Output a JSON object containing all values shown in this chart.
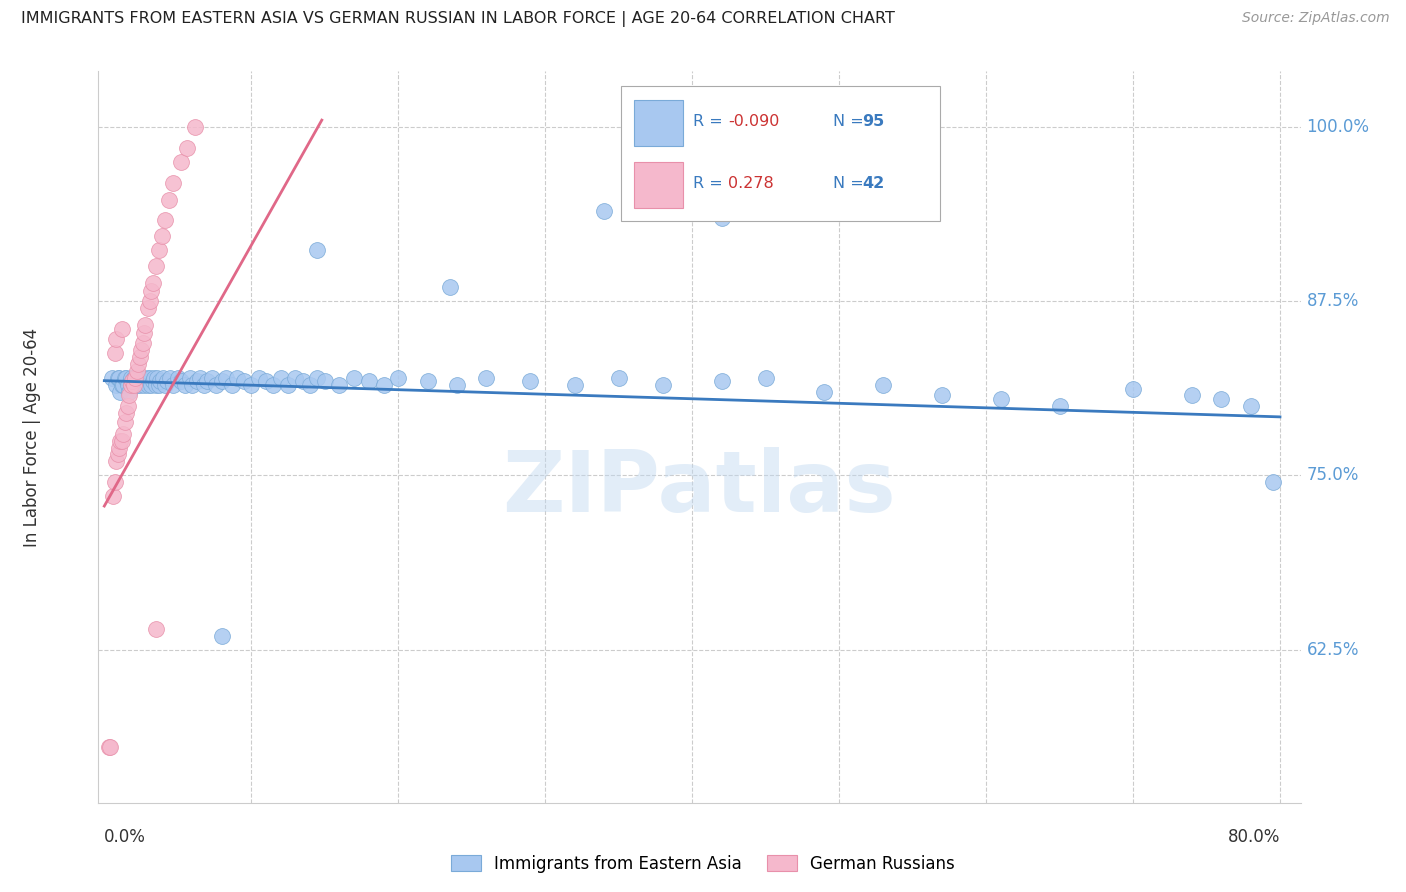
{
  "title": "IMMIGRANTS FROM EASTERN ASIA VS GERMAN RUSSIAN IN LABOR FORCE | AGE 20-64 CORRELATION CHART",
  "source": "Source: ZipAtlas.com",
  "ylabel": "In Labor Force | Age 20-64",
  "xlim": [
    -0.004,
    0.814
  ],
  "ylim": [
    0.515,
    1.04
  ],
  "yticks_vals": [
    0.625,
    0.75,
    0.875,
    1.0
  ],
  "yticks_labels": [
    "62.5%",
    "75.0%",
    "87.5%",
    "100.0%"
  ],
  "xtick_left_label": "0.0%",
  "xtick_right_label": "80.0%",
  "watermark": "ZIPatlas",
  "R_blue_str": "-0.090",
  "N_blue_str": "95",
  "R_pink_str": "0.278",
  "N_pink_str": "42",
  "blue_scatter_color": "#a8c8f0",
  "pink_scatter_color": "#f5b8cc",
  "blue_line_color": "#3a7abf",
  "pink_line_color": "#e06888",
  "blue_line_x": [
    0.0,
    0.8
  ],
  "blue_line_y": [
    0.818,
    0.792
  ],
  "pink_line_x": [
    0.0,
    0.148
  ],
  "pink_line_y": [
    0.728,
    1.005
  ],
  "grid_color": "#cccccc",
  "title_color": "#222222",
  "source_color": "#999999",
  "axis_label_color": "#333333",
  "right_tick_color": "#5b9bd5",
  "legend_text_color": "#3a7abf",
  "legend_r_color": "#cc3333",
  "blue_x": [
    0.005,
    0.008,
    0.009,
    0.01,
    0.011,
    0.012,
    0.013,
    0.014,
    0.015,
    0.016,
    0.017,
    0.018,
    0.018,
    0.019,
    0.02,
    0.02,
    0.021,
    0.022,
    0.023,
    0.024,
    0.025,
    0.026,
    0.027,
    0.028,
    0.029,
    0.03,
    0.031,
    0.032,
    0.033,
    0.034,
    0.035,
    0.036,
    0.037,
    0.038,
    0.04,
    0.041,
    0.043,
    0.045,
    0.047,
    0.05,
    0.052,
    0.055,
    0.058,
    0.06,
    0.063,
    0.065,
    0.068,
    0.07,
    0.073,
    0.076,
    0.08,
    0.083,
    0.087,
    0.09,
    0.095,
    0.1,
    0.105,
    0.11,
    0.115,
    0.12,
    0.125,
    0.13,
    0.135,
    0.14,
    0.145,
    0.15,
    0.16,
    0.17,
    0.18,
    0.19,
    0.2,
    0.22,
    0.24,
    0.26,
    0.29,
    0.32,
    0.35,
    0.38,
    0.42,
    0.45,
    0.49,
    0.53,
    0.57,
    0.61,
    0.65,
    0.7,
    0.74,
    0.76,
    0.78,
    0.795,
    0.34,
    0.42,
    0.145,
    0.235,
    0.08
  ],
  "blue_y": [
    0.82,
    0.815,
    0.82,
    0.82,
    0.81,
    0.815,
    0.815,
    0.82,
    0.82,
    0.815,
    0.81,
    0.815,
    0.82,
    0.818,
    0.815,
    0.82,
    0.818,
    0.815,
    0.82,
    0.815,
    0.82,
    0.818,
    0.815,
    0.818,
    0.82,
    0.815,
    0.82,
    0.815,
    0.818,
    0.82,
    0.815,
    0.82,
    0.815,
    0.818,
    0.82,
    0.815,
    0.818,
    0.82,
    0.815,
    0.82,
    0.818,
    0.815,
    0.82,
    0.815,
    0.818,
    0.82,
    0.815,
    0.818,
    0.82,
    0.815,
    0.818,
    0.82,
    0.815,
    0.82,
    0.818,
    0.815,
    0.82,
    0.818,
    0.815,
    0.82,
    0.815,
    0.82,
    0.818,
    0.815,
    0.82,
    0.818,
    0.815,
    0.82,
    0.818,
    0.815,
    0.82,
    0.818,
    0.815,
    0.82,
    0.818,
    0.815,
    0.82,
    0.815,
    0.818,
    0.82,
    0.81,
    0.815,
    0.808,
    0.805,
    0.8,
    0.812,
    0.808,
    0.805,
    0.8,
    0.745,
    0.94,
    0.935,
    0.912,
    0.885,
    0.635
  ],
  "pink_x": [
    0.003,
    0.004,
    0.006,
    0.007,
    0.008,
    0.009,
    0.01,
    0.011,
    0.012,
    0.013,
    0.014,
    0.015,
    0.016,
    0.017,
    0.018,
    0.019,
    0.02,
    0.021,
    0.022,
    0.023,
    0.024,
    0.025,
    0.026,
    0.027,
    0.028,
    0.03,
    0.031,
    0.032,
    0.033,
    0.035,
    0.037,
    0.039,
    0.041,
    0.044,
    0.047,
    0.052,
    0.056,
    0.062,
    0.007,
    0.008,
    0.012,
    0.035
  ],
  "pink_y": [
    0.555,
    0.555,
    0.735,
    0.745,
    0.76,
    0.765,
    0.77,
    0.775,
    0.775,
    0.78,
    0.788,
    0.795,
    0.8,
    0.808,
    0.815,
    0.818,
    0.815,
    0.82,
    0.825,
    0.83,
    0.835,
    0.84,
    0.845,
    0.852,
    0.858,
    0.87,
    0.875,
    0.882,
    0.888,
    0.9,
    0.912,
    0.922,
    0.933,
    0.948,
    0.96,
    0.975,
    0.985,
    1.0,
    0.838,
    0.848,
    0.855,
    0.64
  ]
}
